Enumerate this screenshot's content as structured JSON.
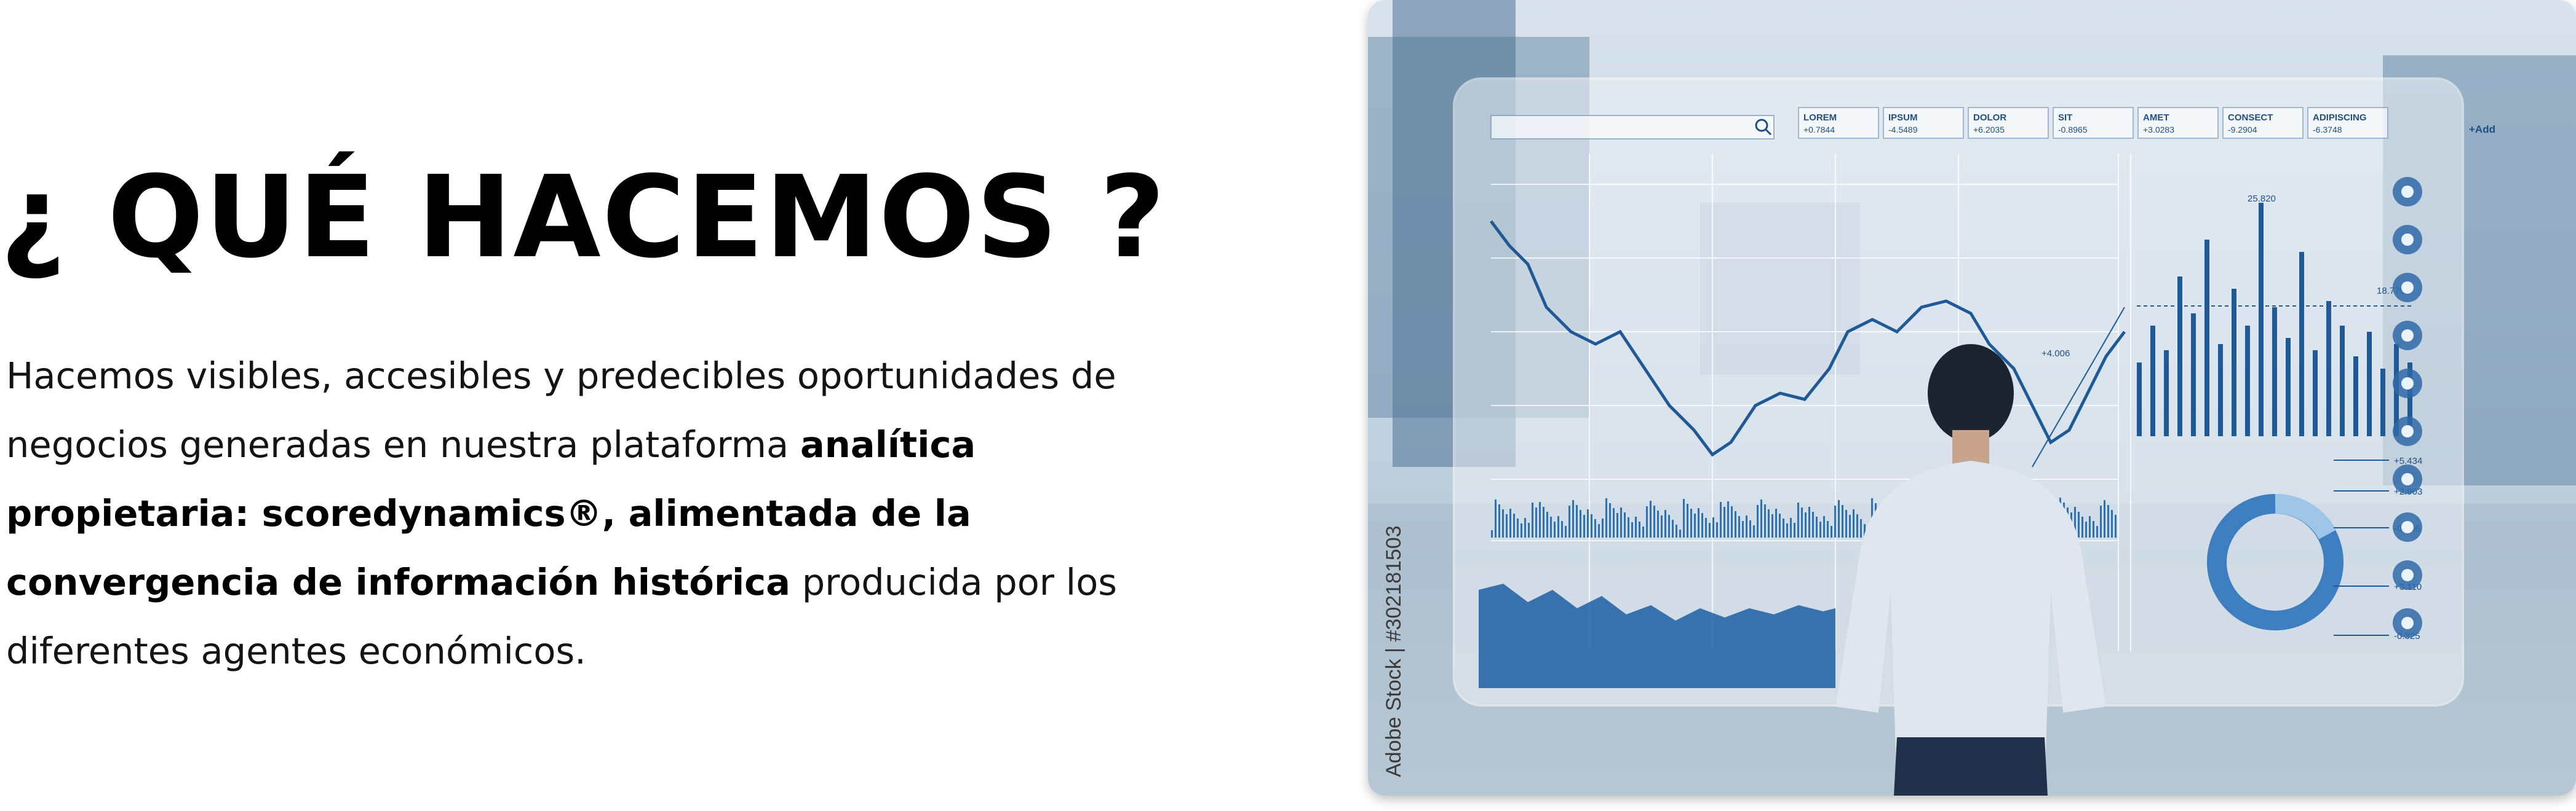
{
  "section": {
    "title": "¿ QUÉ HACEMOS ?",
    "paragraph": {
      "part1": "Hacemos visibles, accesibles y predecibles oportunidades de negocios generadas en nuestra plataforma ",
      "bold": "analítica propietaria: scoredynamics®, alimentada de la convergencia de información histórica",
      "part2": " producida por los diferentes agentes económicos."
    }
  },
  "image": {
    "watermark": "Adobe Stock | #302181503",
    "hud": {
      "tickers": [
        {
          "name": "LOREM",
          "value": "+0.7844"
        },
        {
          "name": "IPSUM",
          "value": "-4.5489"
        },
        {
          "name": "DOLOR",
          "value": "+6.2035"
        },
        {
          "name": "SIT",
          "value": "-0.8965"
        },
        {
          "name": "AMET",
          "value": "+3.0283"
        },
        {
          "name": "CONSECT",
          "value": "-9.2904"
        },
        {
          "name": "ADIPISCING",
          "value": "-6.3748"
        }
      ],
      "add_label": "+Add",
      "chart_annotations": [
        "+4.006",
        "25.820",
        "18.775"
      ],
      "donut_labels": [
        "+5.434",
        "+2.903",
        "-0.436",
        "+3.110",
        "-0.325"
      ],
      "icons": [
        "search-icon",
        "user-icon",
        "gears-icon",
        "lock-icon",
        "cloud-upload-icon",
        "cloud-download-icon",
        "bars-icon",
        "bar-chart-icon",
        "pie-chart-icon",
        "refresh-icon"
      ]
    }
  }
}
